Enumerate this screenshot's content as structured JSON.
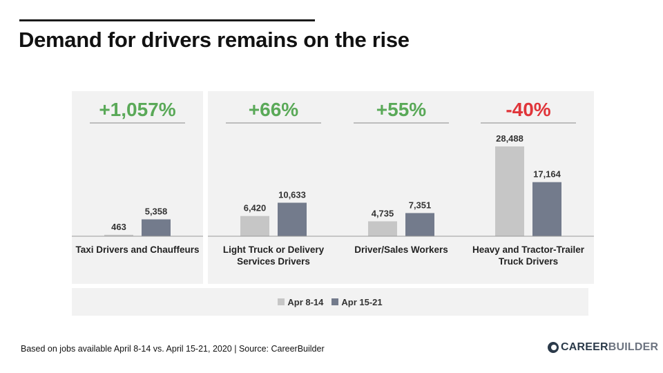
{
  "title": "Demand for drivers remains on the rise",
  "footnote": "Based on jobs available April 8-14 vs. April 15-21, 2020  |  Source: CareerBuilder",
  "logo": {
    "part1": "CAREER",
    "part2": "BUILDER"
  },
  "legend": {
    "series1": "Apr 8-14",
    "series2": "Apr 15-21"
  },
  "colors": {
    "series1": "#c6c6c6",
    "series2": "#737b8c",
    "positive": "#5aa958",
    "negative": "#e0353a"
  },
  "chart_data": {
    "type": "bar",
    "categories": [
      "Taxi Drivers and Chauffeurs",
      "Light Truck or Delivery Services Drivers",
      "Driver/Sales Workers",
      "Heavy and Tractor-Trailer Truck Drivers"
    ],
    "category_lines": [
      [
        "Taxi Drivers and Chauffeurs"
      ],
      [
        "Light Truck or Delivery",
        "Services Drivers"
      ],
      [
        "Driver/Sales Workers"
      ],
      [
        "Heavy and Tractor-Trailer",
        "Truck Drivers"
      ]
    ],
    "series": [
      {
        "name": "Apr 8-14",
        "values": [
          463,
          6420,
          4735,
          28488
        ],
        "labels": [
          "463",
          "6,420",
          "4,735",
          "28,488"
        ]
      },
      {
        "name": "Apr 15-21",
        "values": [
          5358,
          10633,
          7351,
          17164
        ],
        "labels": [
          "5,358",
          "10,633",
          "7,351",
          "17,164"
        ]
      }
    ],
    "changes": [
      "+1,057%",
      "+66%",
      "+55%",
      "-40%"
    ],
    "change_direction": [
      "up",
      "up",
      "up",
      "down"
    ],
    "ylim": [
      0,
      28488
    ]
  }
}
